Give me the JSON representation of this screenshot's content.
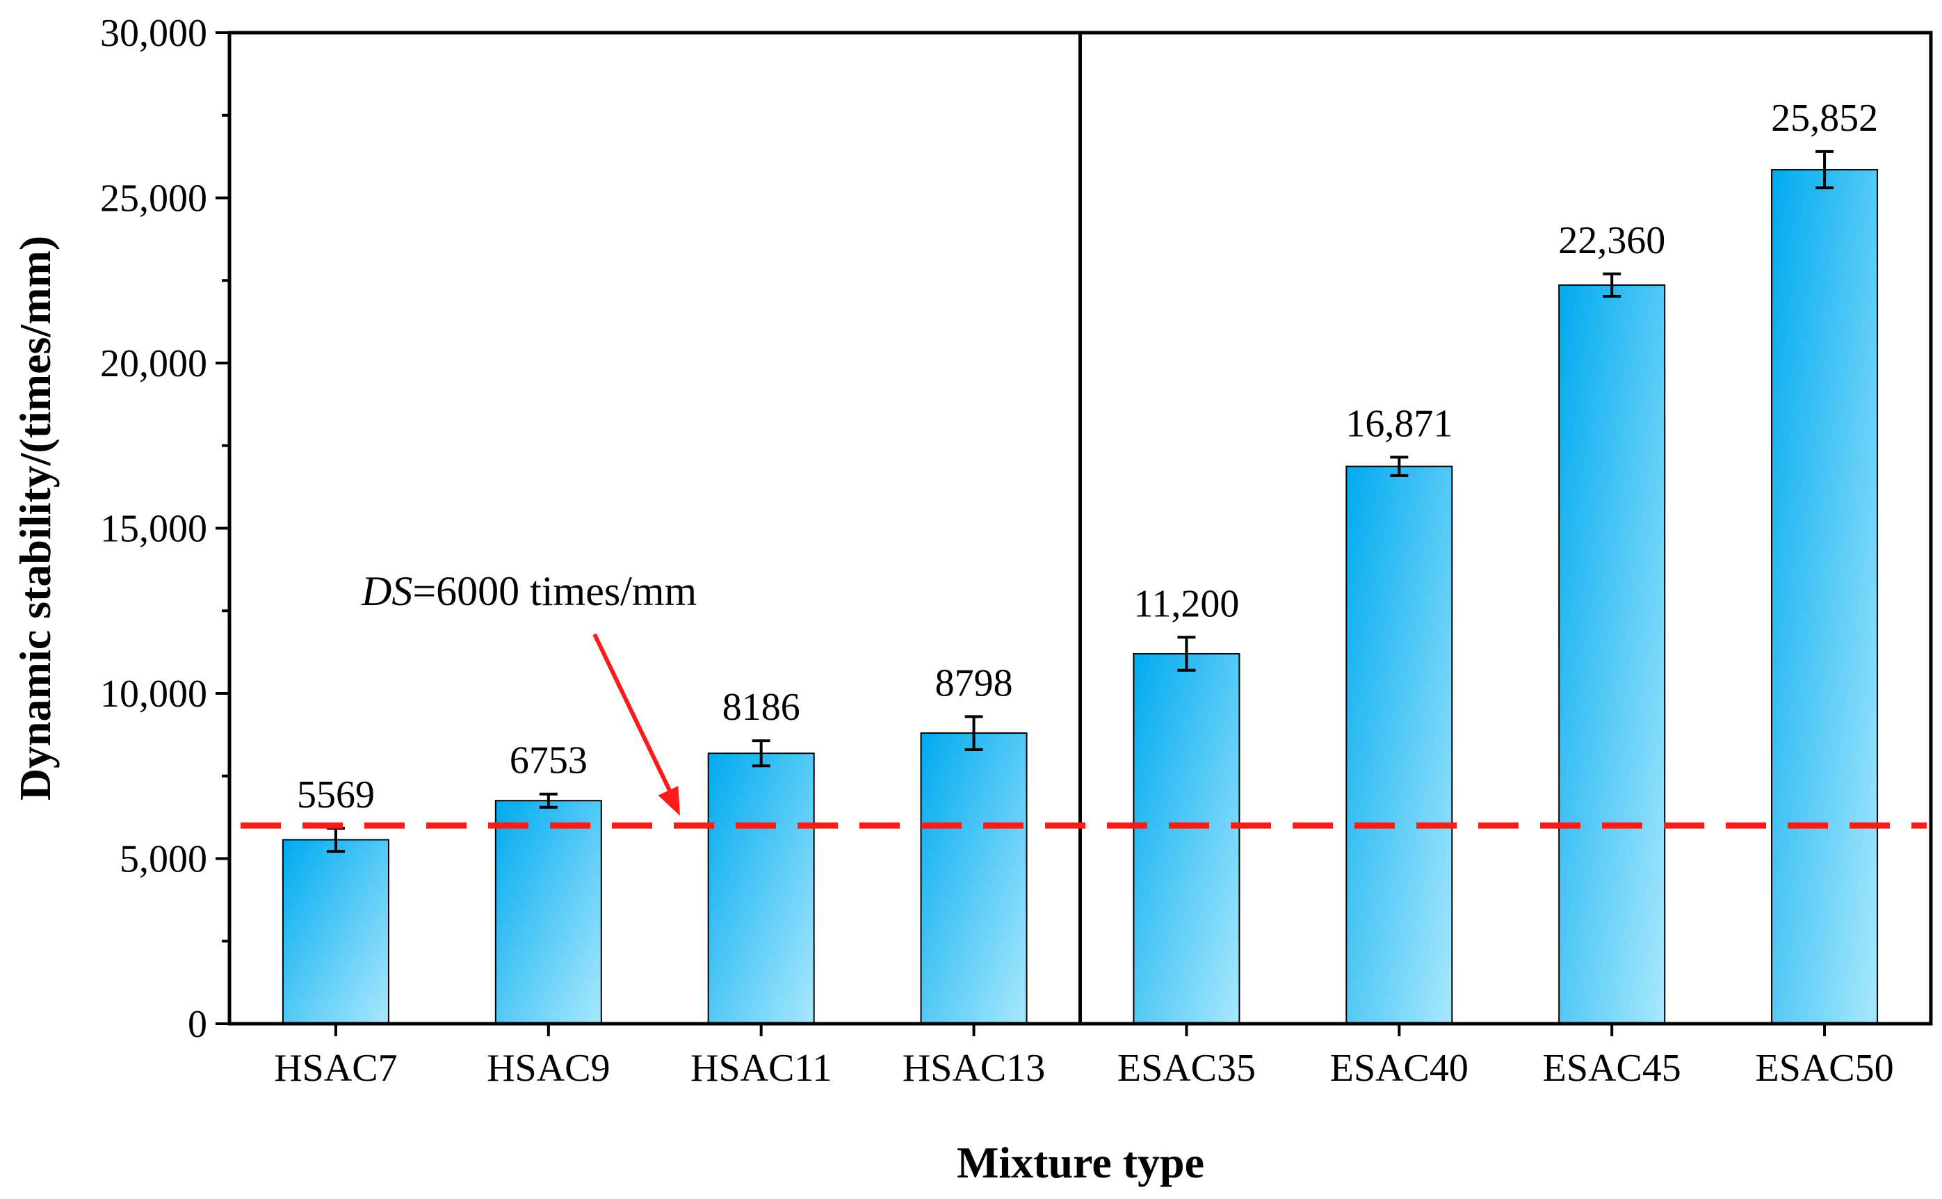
{
  "chart_data": {
    "type": "bar",
    "title": "",
    "xlabel": "Mixture type",
    "ylabel": "Dynamic stability/(times/mm)",
    "ylim": [
      0,
      30000
    ],
    "yticks": [
      0,
      5000,
      10000,
      15000,
      20000,
      25000,
      30000
    ],
    "ytick_labels": [
      "0",
      "5,000",
      "10,000",
      "15,000",
      "20,000",
      "25,000",
      "30,000"
    ],
    "categories": [
      "HSAC7",
      "HSAC9",
      "HSAC11",
      "HSAC13",
      "ESAC35",
      "ESAC40",
      "ESAC45",
      "ESAC50"
    ],
    "values": [
      5569,
      6753,
      8186,
      8798,
      11200,
      16871,
      22360,
      25852
    ],
    "value_labels": [
      "5569",
      "6753",
      "8186",
      "8798",
      "11,200",
      "16,871",
      "22,360",
      "25,852"
    ],
    "errors": [
      350,
      200,
      380,
      500,
      500,
      280,
      340,
      550
    ],
    "group_divider_after_index": 3,
    "reference_line": {
      "value": 6000,
      "label_italic": "DS",
      "label_rest": "=6000 times/mm",
      "color": "#ff1a1a"
    },
    "bar_color_start": "#00aaf0",
    "bar_color_end": "#a8e8fc",
    "grid": false,
    "legend": "none"
  }
}
